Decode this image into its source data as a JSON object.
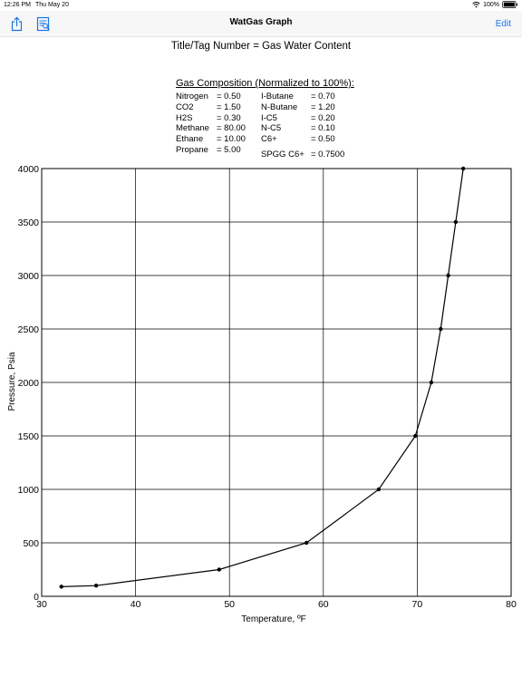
{
  "status_bar": {
    "time": "12:26 PM",
    "date": "Thu May 20",
    "battery": "100%"
  },
  "nav": {
    "title": "WatGas Graph",
    "edit_label": "Edit",
    "left_icons": [
      "share-icon",
      "report-icon"
    ]
  },
  "report": {
    "title_line": "Title/Tag Number  =  Gas Water Content",
    "composition_heading": "Gas Composition (Normalized to 100%):",
    "composition": [
      {
        "name": "Nitrogen",
        "value": "= 0.50"
      },
      {
        "name": "CO2",
        "value": "= 1.50"
      },
      {
        "name": "H2S",
        "value": "= 0.30"
      },
      {
        "name": "Methane",
        "value": "= 80.00"
      },
      {
        "name": "Ethane",
        "value": "= 10.00"
      },
      {
        "name": "Propane",
        "value": "= 5.00"
      },
      {
        "name": "I-Butane",
        "value": "= 0.70"
      },
      {
        "name": "N-Butane",
        "value": "= 1.20"
      },
      {
        "name": "I-C5",
        "value": "= 0.20"
      },
      {
        "name": "N-C5",
        "value": "= 0.10"
      },
      {
        "name": "C6+",
        "value": "= 0.50"
      },
      {
        "name": "SPGG C6+",
        "value": "= 0.7500"
      }
    ]
  },
  "chart_data": {
    "type": "line",
    "xlabel": "Temperature, ºF",
    "ylabel": "Pressure, Psia",
    "xlim": [
      30,
      80
    ],
    "ylim": [
      0,
      4000
    ],
    "xticks": [
      30,
      40,
      50,
      60,
      70,
      80
    ],
    "yticks": [
      0,
      500,
      1000,
      1500,
      2000,
      2500,
      3000,
      3500,
      4000
    ],
    "grid": true,
    "series": [
      {
        "x": [
          32.1,
          35.8,
          48.9,
          58.2,
          65.9,
          69.8,
          71.5,
          72.5,
          73.3,
          74.1,
          74.9
        ],
        "y": [
          90,
          100,
          250,
          500,
          1000,
          1500,
          2000,
          2500,
          3000,
          3500,
          4000
        ],
        "color": "#000000"
      }
    ]
  }
}
